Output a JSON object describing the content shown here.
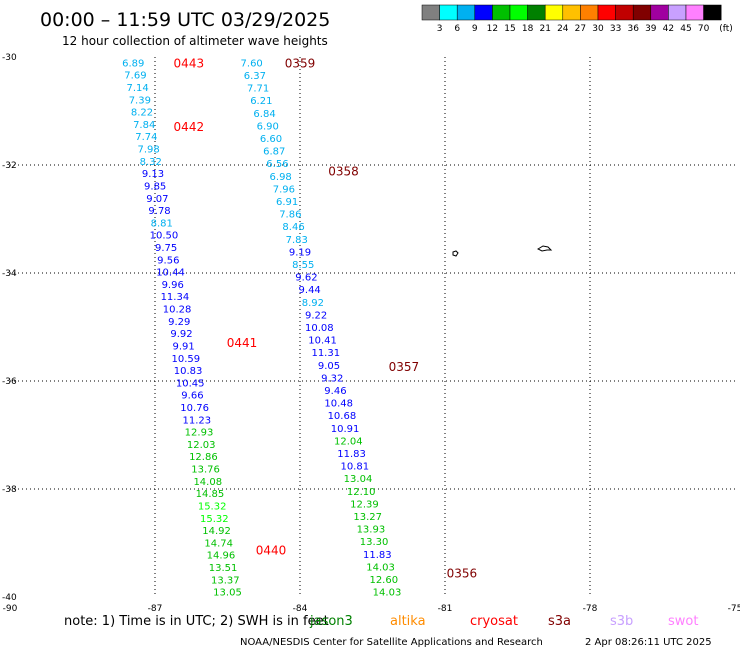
{
  "title": "00:00 – 11:59 UTC 03/29/2025",
  "subtitle": "12 hour collection of altimeter wave heights",
  "note": "note:  1) Time is in UTC; 2) SWH is in feet",
  "credit": "NOAA/NESDIS Center for Satellite Applications and Research",
  "timestamp": "2 Apr 08:26:11 UTC 2025",
  "colorbar": {
    "unit": "(ft)",
    "labels": [
      "3",
      "6",
      "9",
      "12",
      "15",
      "18",
      "21",
      "24",
      "27",
      "30",
      "33",
      "36",
      "39",
      "42",
      "45",
      "70"
    ],
    "colors": [
      "#808080",
      "#00ffff",
      "#00b0f0",
      "#0000ff",
      "#00c000",
      "#00ff00",
      "#008000",
      "#ffff00",
      "#ffc000",
      "#ff8000",
      "#ff0000",
      "#c00000",
      "#800000",
      "#a000a0",
      "#c8a0ff",
      "#ff80ff",
      "#000000"
    ]
  },
  "satellites": [
    {
      "name": "jason3",
      "color": "#008000"
    },
    {
      "name": "altika",
      "color": "#ff8c00"
    },
    {
      "name": "cryosat",
      "color": "#ff0000"
    },
    {
      "name": "s3a",
      "color": "#800000"
    },
    {
      "name": "s3b",
      "color": "#c8a0ff"
    },
    {
      "name": "swot",
      "color": "#ff80ff"
    }
  ],
  "chart_data": {
    "type": "scatter",
    "title": "00:00 – 11:59 UTC 03/29/2025",
    "subtitle": "12 hour collection of altimeter wave heights",
    "xlim": [
      -90,
      -75
    ],
    "ylim": [
      -40,
      -30
    ],
    "xticks": [
      "-90",
      "-87",
      "-84",
      "-81",
      "-78",
      "-75"
    ],
    "yticks": [
      "-30",
      "-32",
      "-34",
      "-36",
      "-38",
      "-40"
    ],
    "tracks": [
      {
        "satellite": "cryosat",
        "start_lon": -87.45,
        "end_lon": -85.5,
        "values": [
          "6.89",
          "7.69",
          "7.14",
          "7.39",
          "8.22",
          "7.84",
          "7.74",
          "7.98",
          "8.32",
          "9.13",
          "9.85",
          "9.07",
          "9.78",
          "8.81",
          "10.50",
          "9.75",
          "9.56",
          "10.44",
          "9.96",
          "11.34",
          "10.28",
          "9.29",
          "9.92",
          "9.91",
          "10.59",
          "10.83",
          "10.45",
          "9.66",
          "10.76",
          "11.23",
          "12.93",
          "12.03",
          "12.86",
          "13.76",
          "14.08",
          "14.85",
          "15.32",
          "15.32",
          "14.92",
          "14.74",
          "14.96",
          "13.51",
          "13.37",
          "13.05"
        ],
        "times": [
          {
            "label": "0443",
            "lat": -30.1,
            "lon": -86.3
          },
          {
            "label": "0442",
            "lat": -31.28,
            "lon": -86.3
          },
          {
            "label": "0441",
            "lat": -35.28,
            "lon": -85.2
          },
          {
            "label": "0440",
            "lat": -39.12,
            "lon": -84.6
          }
        ]
      },
      {
        "satellite": "s3a",
        "start_lon": -85.0,
        "end_lon": -82.2,
        "values": [
          "7.60",
          "6.37",
          "7.71",
          "6.21",
          "6.84",
          "6.90",
          "6.60",
          "6.87",
          "6.56",
          "6.98",
          "7.96",
          "6.91",
          "7.86",
          "8.46",
          "7.83",
          "9.19",
          "8.55",
          "9.62",
          "9.44",
          "8.92",
          "9.22",
          "10.08",
          "10.41",
          "11.31",
          "9.05",
          "9.32",
          "9.46",
          "10.48",
          "10.68",
          "10.91",
          "12.04",
          "11.83",
          "10.81",
          "13.04",
          "12.10",
          "12.39",
          "13.27",
          "13.93",
          "13.30",
          "11.83",
          "14.03",
          "12.60",
          "14.03"
        ],
        "times": [
          {
            "label": "0359",
            "lat": -30.1,
            "lon": -84.0
          },
          {
            "label": "0358",
            "lat": -32.1,
            "lon": -83.1
          },
          {
            "label": "0357",
            "lat": -35.72,
            "lon": -81.85
          },
          {
            "label": "0356",
            "lat": -39.55,
            "lon": -80.65
          }
        ]
      }
    ]
  }
}
